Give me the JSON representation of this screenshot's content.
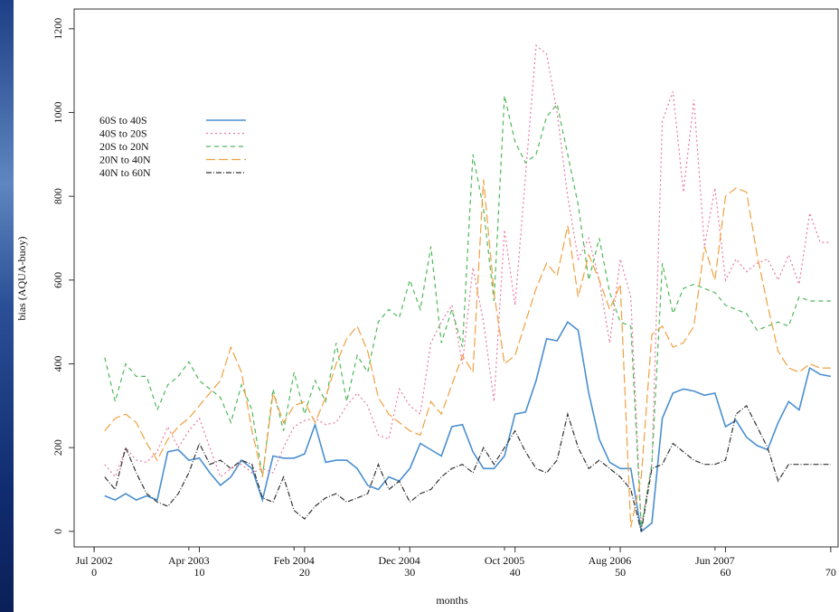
{
  "chart_data": {
    "type": "line",
    "xlabel": "months",
    "ylabel": "bias (AQUA-buoy)",
    "x": [
      1,
      2,
      3,
      4,
      5,
      6,
      7,
      8,
      9,
      10,
      11,
      12,
      13,
      14,
      15,
      16,
      17,
      18,
      19,
      20,
      21,
      22,
      23,
      24,
      25,
      26,
      27,
      28,
      29,
      30,
      31,
      32,
      33,
      34,
      35,
      36,
      37,
      38,
      39,
      40,
      41,
      42,
      43,
      44,
      45,
      46,
      47,
      48,
      49,
      50,
      51,
      52,
      53,
      54,
      55,
      56,
      57,
      58,
      59,
      60,
      61,
      62,
      63,
      64,
      65,
      66,
      67,
      68,
      69,
      70
    ],
    "series": [
      {
        "name": "60S to 40S",
        "color": "#4a8fd0",
        "dash": "none",
        "values": [
          85,
          75,
          90,
          75,
          85,
          75,
          190,
          195,
          170,
          175,
          140,
          110,
          130,
          170,
          150,
          75,
          180,
          175,
          175,
          185,
          255,
          165,
          170,
          170,
          150,
          110,
          100,
          130,
          120,
          150,
          210,
          195,
          180,
          250,
          255,
          190,
          150,
          150,
          180,
          280,
          285,
          360,
          460,
          455,
          500,
          480,
          330,
          220,
          165,
          150,
          150,
          0,
          20,
          270,
          330,
          340,
          335,
          325,
          330,
          250,
          265,
          225,
          205,
          195,
          260,
          310,
          290,
          390,
          375,
          370
        ]
      },
      {
        "name": "40S to 20S",
        "color": "#e8789e",
        "dash": "2 3",
        "values": [
          160,
          130,
          200,
          170,
          165,
          190,
          250,
          200,
          240,
          270,
          200,
          130,
          150,
          160,
          140,
          150,
          140,
          200,
          250,
          265,
          270,
          255,
          260,
          300,
          330,
          300,
          230,
          220,
          340,
          300,
          280,
          450,
          500,
          540,
          400,
          630,
          500,
          310,
          720,
          540,
          850,
          1160,
          1140,
          1000,
          800,
          650,
          700,
          600,
          450,
          650,
          560,
          10,
          160,
          980,
          1050,
          810,
          1030,
          680,
          820,
          600,
          650,
          620,
          640,
          650,
          600,
          660,
          590,
          760,
          690,
          690
        ]
      },
      {
        "name": "20S to 20N",
        "color": "#4fb85a",
        "dash": "5 4",
        "values": [
          415,
          310,
          400,
          370,
          370,
          290,
          350,
          370,
          405,
          360,
          340,
          320,
          260,
          350,
          290,
          130,
          340,
          240,
          380,
          280,
          360,
          310,
          450,
          310,
          420,
          380,
          500,
          530,
          510,
          600,
          530,
          680,
          450,
          530,
          440,
          900,
          770,
          550,
          1040,
          930,
          880,
          900,
          990,
          1020,
          900,
          780,
          600,
          700,
          570,
          500,
          490,
          10,
          160,
          640,
          520,
          580,
          590,
          580,
          570,
          540,
          530,
          520,
          480,
          490,
          500,
          490,
          560,
          550,
          550,
          550
        ]
      },
      {
        "name": "20N to 40N",
        "color": "#f0a040",
        "dash": "10 4",
        "values": [
          240,
          270,
          280,
          260,
          210,
          170,
          220,
          250,
          270,
          300,
          330,
          360,
          440,
          380,
          240,
          130,
          330,
          260,
          300,
          310,
          260,
          320,
          400,
          460,
          490,
          430,
          320,
          280,
          260,
          240,
          230,
          310,
          280,
          350,
          420,
          380,
          840,
          570,
          400,
          420,
          500,
          580,
          640,
          610,
          730,
          560,
          660,
          600,
          530,
          590,
          10,
          130,
          470,
          490,
          440,
          450,
          490,
          680,
          600,
          800,
          820,
          810,
          660,
          540,
          430,
          390,
          380,
          400,
          390,
          390
        ]
      },
      {
        "name": "40N to 60N",
        "color": "#333333",
        "dash": "6 2 1 2",
        "values": [
          130,
          100,
          200,
          140,
          90,
          70,
          60,
          90,
          140,
          210,
          160,
          170,
          150,
          170,
          160,
          80,
          70,
          130,
          50,
          30,
          60,
          80,
          90,
          70,
          80,
          90,
          160,
          100,
          120,
          70,
          90,
          100,
          130,
          150,
          160,
          140,
          200,
          160,
          200,
          240,
          190,
          150,
          140,
          170,
          280,
          200,
          150,
          170,
          150,
          130,
          100,
          0,
          150,
          160,
          210,
          190,
          170,
          160,
          160,
          170,
          280,
          300,
          250,
          200,
          120,
          160,
          160,
          160,
          160,
          160
        ]
      }
    ],
    "xlim": [
      -1.9,
      70.7
    ],
    "ylim": [
      -37,
      1247
    ],
    "xticks": [
      0,
      10,
      20,
      30,
      40,
      50,
      60,
      70
    ],
    "x_date_ticks": [
      {
        "value": 0,
        "label": "Jul 2002"
      },
      {
        "value": 9,
        "label": "Apr 2003"
      },
      {
        "value": 19,
        "label": "Feb 2004"
      },
      {
        "value": 29,
        "label": "Dec 2004"
      },
      {
        "value": 39,
        "label": "Oct 2005"
      },
      {
        "value": 49,
        "label": "Aug 2006"
      },
      {
        "value": 59,
        "label": "Jun 2007"
      }
    ],
    "yticks": [
      0,
      200,
      400,
      600,
      800,
      1000,
      1200
    ],
    "legend": "upper left"
  }
}
